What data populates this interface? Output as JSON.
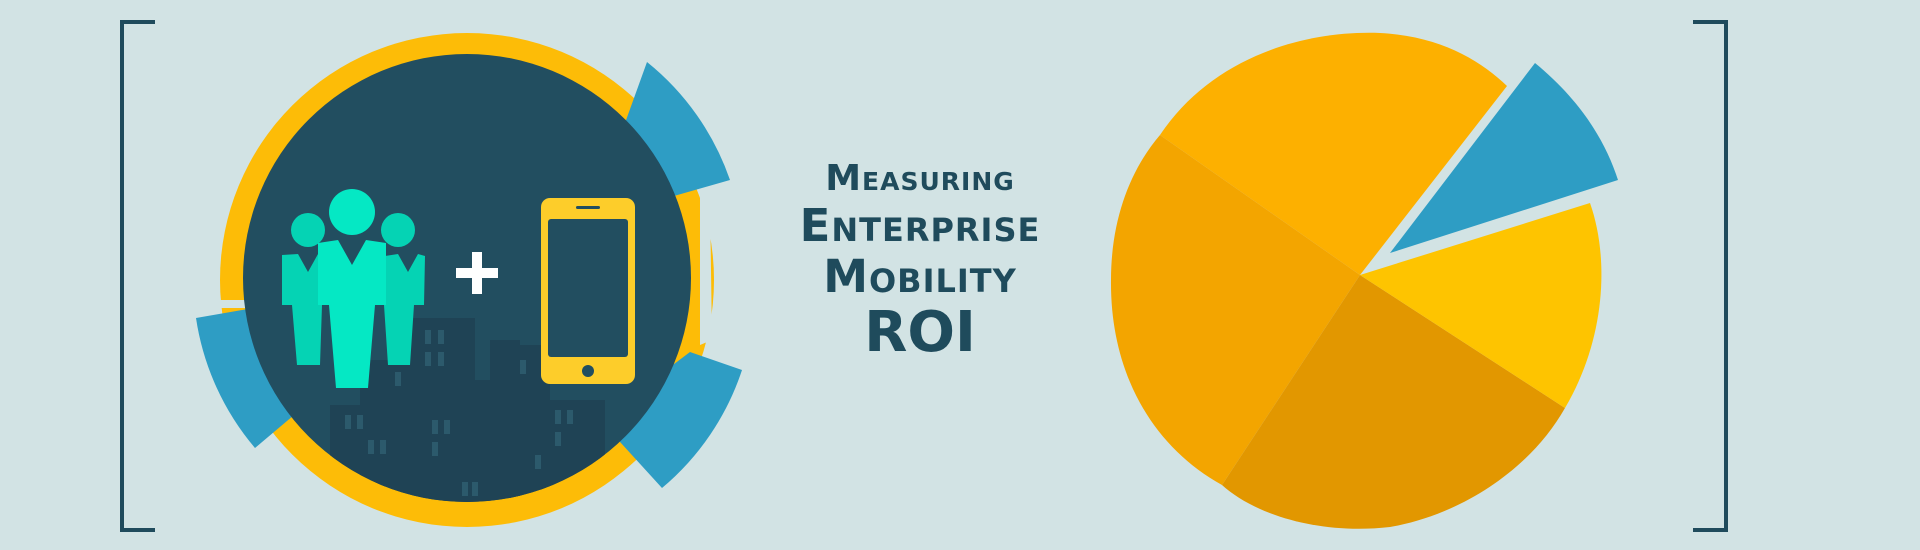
{
  "headline": {
    "line1": "Measuring",
    "line2": "Enterprise",
    "line3": "Mobility",
    "line4": "ROI"
  },
  "colors": {
    "background": "#d2e3e4",
    "dark_navy": "#1f4b5c",
    "teal_people": "#05e8c4",
    "yellow": "#fdbc07",
    "blue": "#2e9dc4",
    "orange": "#fdb000"
  },
  "icons": [
    "people-icon",
    "plus-icon",
    "smartphone-icon",
    "city-skyline-icon",
    "pie-chart-icon",
    "bracket-left",
    "bracket-right"
  ]
}
